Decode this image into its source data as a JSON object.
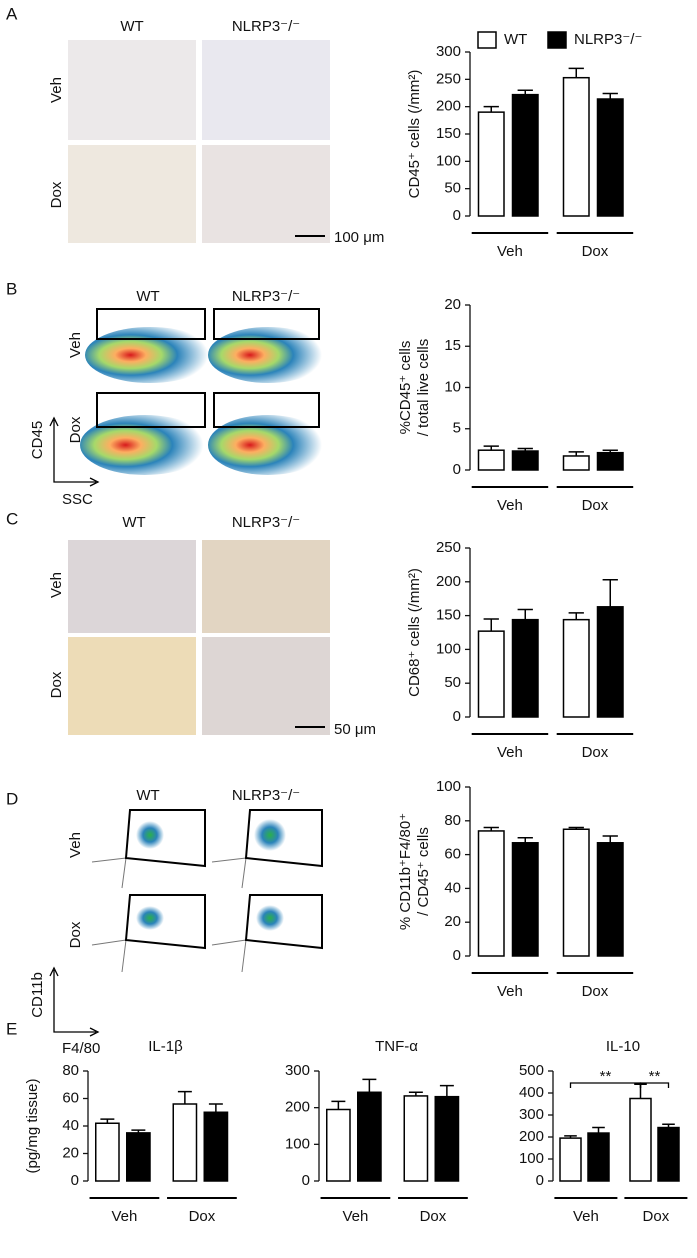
{
  "panels": [
    {
      "letter": "A",
      "columns": [
        "WT",
        "NLRP3⁻/⁻"
      ],
      "rows": [
        "Veh",
        "Dox"
      ],
      "scale_bar": "100 μm"
    },
    {
      "letter": "B",
      "columns": [
        "WT",
        "NLRP3⁻/⁻"
      ],
      "rows": [
        "Veh",
        "Dox"
      ],
      "axes": [
        "CD45",
        "SSC"
      ]
    },
    {
      "letter": "C",
      "columns": [
        "WT",
        "NLRP3⁻/⁻"
      ],
      "rows": [
        "Veh",
        "Dox"
      ],
      "scale_bar": "50 μm"
    },
    {
      "letter": "D",
      "columns": [
        "WT",
        "NLRP3⁻/⁻"
      ],
      "rows": [
        "Veh",
        "Dox"
      ],
      "axes": [
        "CD11b",
        "F4/80"
      ]
    },
    {
      "letter": "E"
    }
  ],
  "chart_data": [
    {
      "type": "bar",
      "ylabel": [
        "CD45⁺ cells (/mm²)"
      ],
      "categories": [
        "Veh",
        "Dox"
      ],
      "ylim": [
        0,
        300
      ],
      "yticks": [
        0,
        50,
        100,
        150,
        200,
        250,
        300
      ],
      "legend": "top",
      "series": [
        {
          "name": "WT",
          "color": "#ffffff",
          "values": [
            190,
            253
          ],
          "errors": [
            10,
            17
          ]
        },
        {
          "name": "NLRP3⁻/⁻",
          "color": "#000000",
          "values": [
            222,
            214
          ],
          "errors": [
            8,
            10
          ]
        }
      ]
    },
    {
      "type": "bar",
      "ylabel": [
        "%CD45⁺ cells",
        "/ total live cells"
      ],
      "categories": [
        "Veh",
        "Dox"
      ],
      "ylim": [
        0,
        20
      ],
      "yticks": [
        0,
        5,
        10,
        15,
        20
      ],
      "series": [
        {
          "color": "#ffffff",
          "values": [
            2.4,
            1.7
          ],
          "errors": [
            0.5,
            0.5
          ]
        },
        {
          "color": "#000000",
          "values": [
            2.3,
            2.1
          ],
          "errors": [
            0.3,
            0.3
          ]
        }
      ]
    },
    {
      "type": "bar",
      "ylabel": [
        "CD68⁺ cells (/mm²)"
      ],
      "categories": [
        "Veh",
        "Dox"
      ],
      "ylim": [
        0,
        250
      ],
      "yticks": [
        0,
        50,
        100,
        150,
        200,
        250
      ],
      "series": [
        {
          "color": "#ffffff",
          "values": [
            127,
            144
          ],
          "errors": [
            18,
            10
          ]
        },
        {
          "color": "#000000",
          "values": [
            144,
            163
          ],
          "errors": [
            15,
            40
          ]
        }
      ]
    },
    {
      "type": "bar",
      "ylabel": [
        "% CD11b⁺F4/80⁺",
        "/ CD45⁺ cells"
      ],
      "categories": [
        "Veh",
        "Dox"
      ],
      "ylim": [
        0,
        100
      ],
      "yticks": [
        0,
        20,
        40,
        60,
        80,
        100
      ],
      "series": [
        {
          "color": "#ffffff",
          "values": [
            74,
            75
          ],
          "errors": [
            2,
            1
          ]
        },
        {
          "color": "#000000",
          "values": [
            67,
            67
          ],
          "errors": [
            3,
            4
          ]
        }
      ]
    },
    {
      "type": "bar",
      "title": "IL-1β",
      "ylabel": [
        "(pg/mg tissue)"
      ],
      "categories": [
        "Veh",
        "Dox"
      ],
      "ylim": [
        0,
        80
      ],
      "yticks": [
        0,
        20,
        40,
        60,
        80
      ],
      "series": [
        {
          "color": "#ffffff",
          "values": [
            42,
            56
          ],
          "errors": [
            3,
            9
          ]
        },
        {
          "color": "#000000",
          "values": [
            35,
            50
          ],
          "errors": [
            2,
            6
          ]
        }
      ]
    },
    {
      "type": "bar",
      "title": "TNF-α",
      "categories": [
        "Veh",
        "Dox"
      ],
      "ylim": [
        0,
        300
      ],
      "yticks": [
        0,
        100,
        200,
        300
      ],
      "series": [
        {
          "color": "#ffffff",
          "values": [
            195,
            232
          ],
          "errors": [
            22,
            10
          ]
        },
        {
          "color": "#000000",
          "values": [
            242,
            230
          ],
          "errors": [
            35,
            30
          ]
        }
      ]
    },
    {
      "type": "bar",
      "title": "IL-10",
      "categories": [
        "Veh",
        "Dox"
      ],
      "ylim": [
        0,
        500
      ],
      "yticks": [
        0,
        100,
        200,
        300,
        400,
        500
      ],
      "annotations": [
        "**",
        "**"
      ],
      "series": [
        {
          "color": "#ffffff",
          "values": [
            195,
            375
          ],
          "errors": [
            10,
            65
          ]
        },
        {
          "color": "#000000",
          "values": [
            218,
            243
          ],
          "errors": [
            25,
            15
          ]
        }
      ]
    }
  ]
}
